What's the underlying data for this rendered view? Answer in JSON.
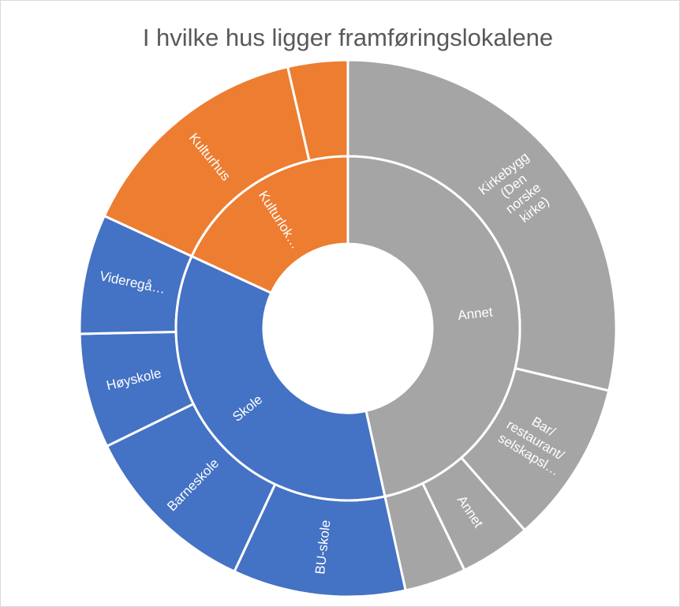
{
  "chart_data": {
    "type": "sunburst",
    "title": "I hvilke hus ligger framføringslokalene",
    "series": [
      {
        "name": "Annet",
        "color": "#a5a5a5",
        "children": [
          {
            "name": "Kirkebygg (Den norske kirke)",
            "value": 28.7
          },
          {
            "name": "Bar/ restaurant/ selskapsl…",
            "value": 9.8
          },
          {
            "name": "Annet",
            "value": 4.3
          },
          {
            "name": null,
            "value": 3.7
          }
        ]
      },
      {
        "name": "Skole",
        "color": "#4472c4",
        "children": [
          {
            "name": "BU-skole",
            "value": 10.4
          },
          {
            "name": "Barneskole",
            "value": 10.8
          },
          {
            "name": "Høyskole",
            "value": 6.9
          },
          {
            "name": "Videregå…",
            "value": 7.2
          }
        ]
      },
      {
        "name": "Kulturlok…",
        "color": "#ed7d31",
        "children": [
          {
            "name": "Kulturhus",
            "value": 14.5
          },
          {
            "name": null,
            "value": 3.6
          }
        ]
      }
    ]
  }
}
